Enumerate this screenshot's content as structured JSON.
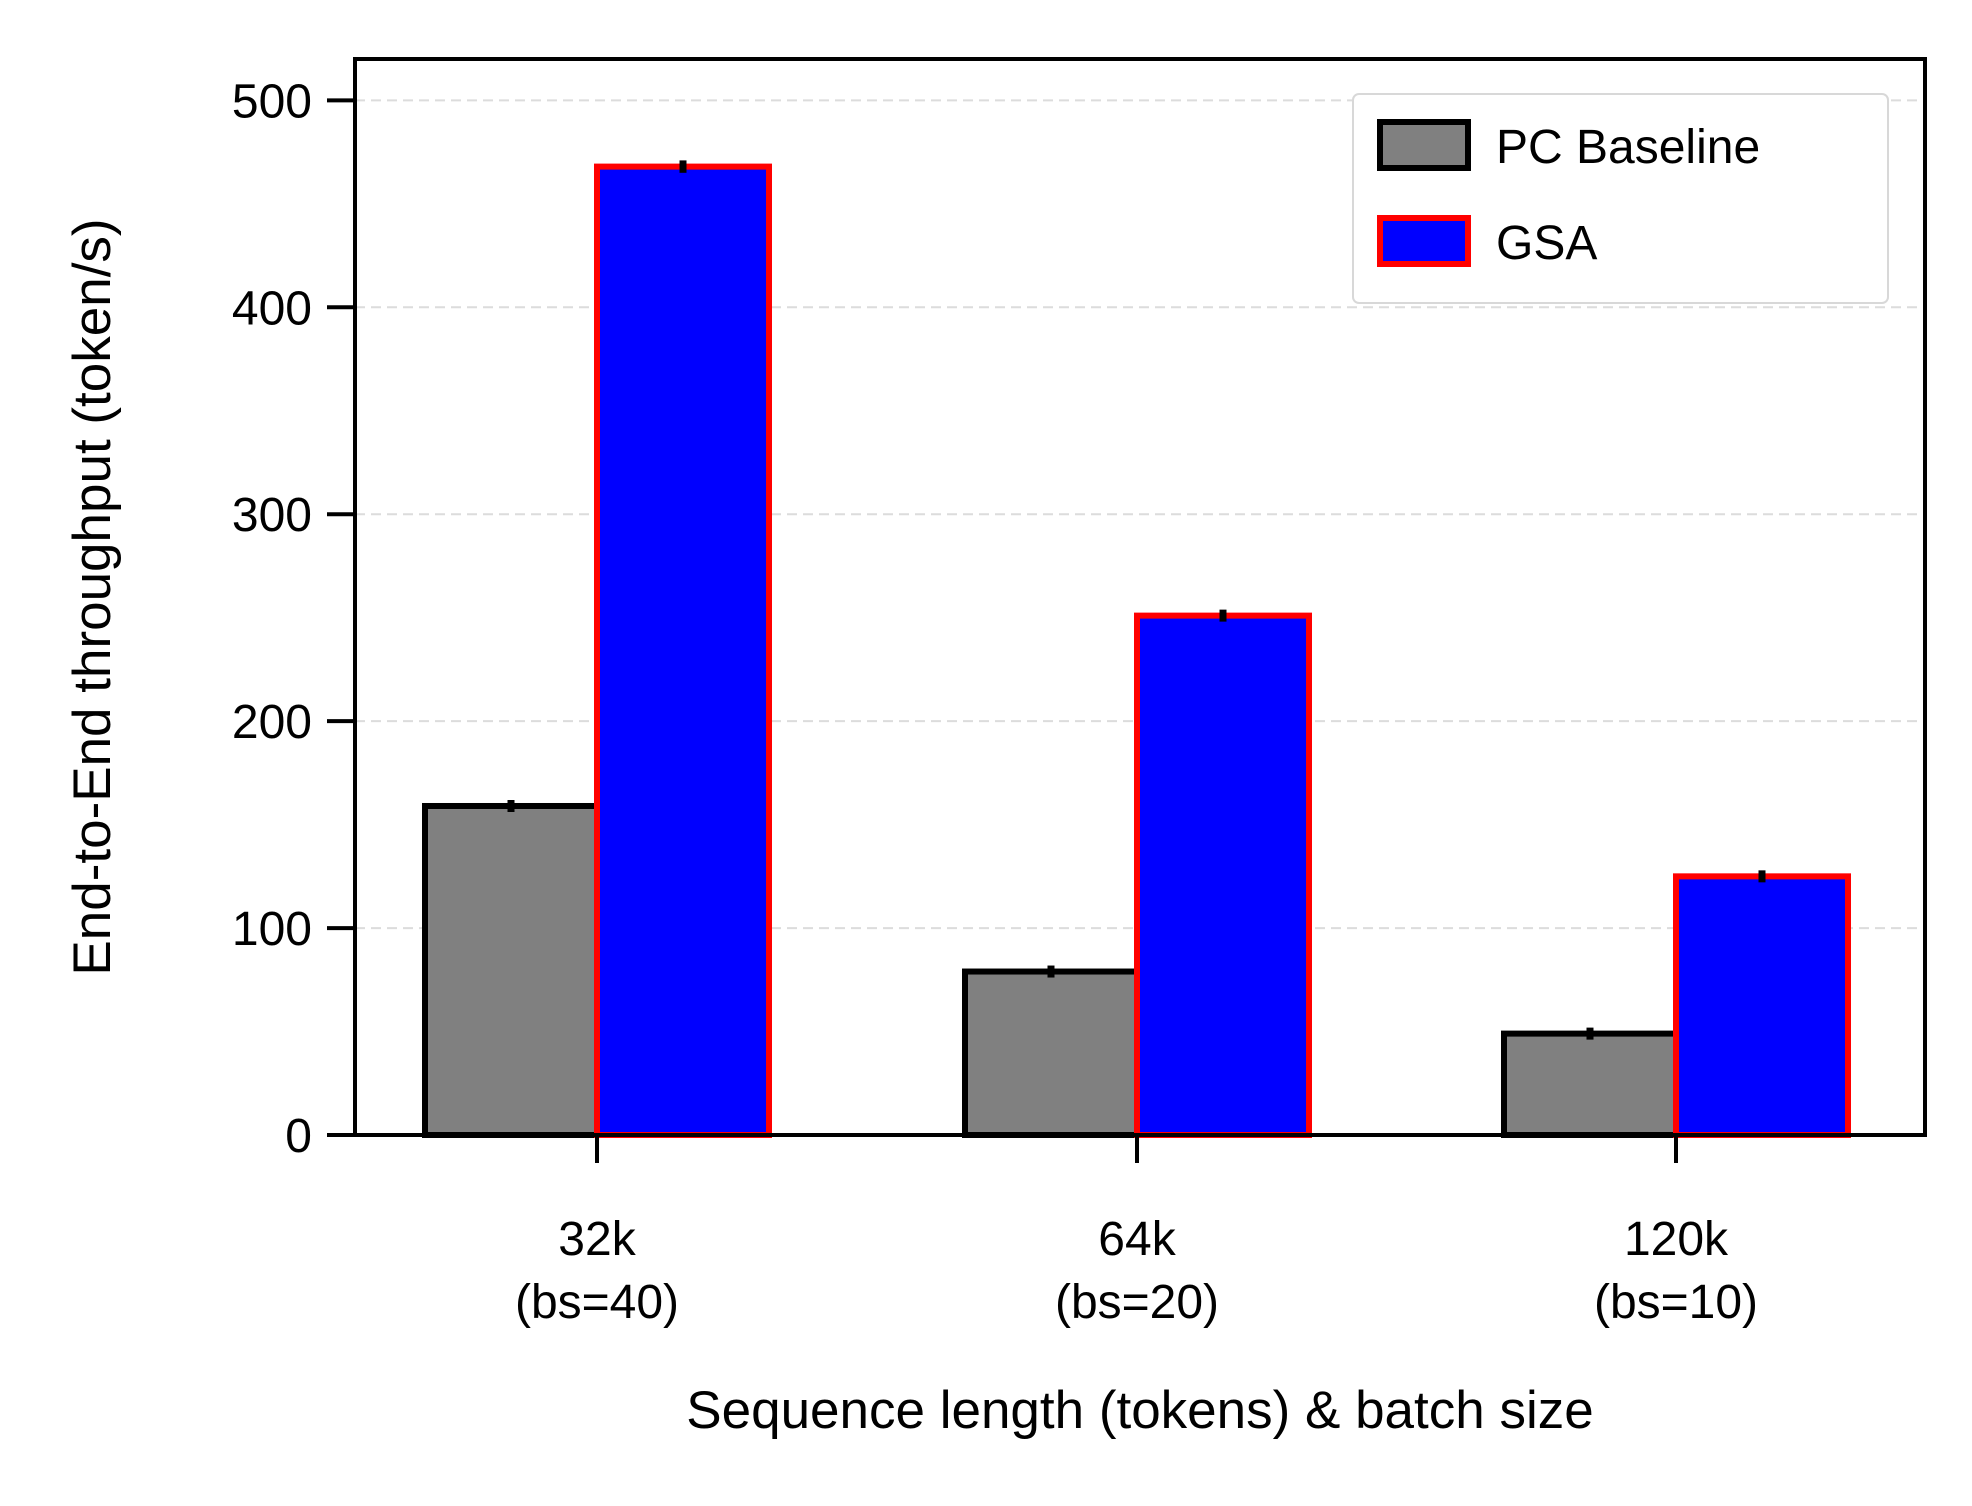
{
  "chart_data": {
    "type": "bar",
    "xlabel": "Sequence length (tokens) & batch size",
    "ylabel": "End-to-End throughput (token/s)",
    "categories": [
      [
        "32k",
        "(bs=40)"
      ],
      [
        "64k",
        "(bs=20)"
      ],
      [
        "120k",
        "(bs=10)"
      ]
    ],
    "ylim": [
      0,
      520
    ],
    "yticks": [
      0,
      100,
      200,
      300,
      400,
      500
    ],
    "grid": true,
    "legend_position": "top-right",
    "series": [
      {
        "name": "PC Baseline",
        "values": [
          159,
          79,
          49
        ],
        "errors": [
          1.5,
          0,
          0
        ],
        "fill": "#808080",
        "edge": "#000000"
      },
      {
        "name": "GSA",
        "values": [
          468,
          251,
          125
        ],
        "errors": [
          3,
          2,
          1
        ],
        "fill": "#0000ff",
        "edge": "#ff0000"
      }
    ]
  }
}
